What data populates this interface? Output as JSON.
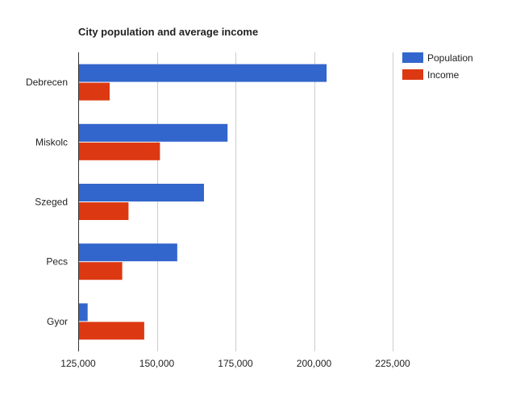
{
  "chart_data": {
    "type": "bar",
    "orientation": "horizontal",
    "title": "City population and average income",
    "xlabel": "",
    "ylabel": "",
    "categories": [
      "Debrecen",
      "Miskolc",
      "Szeged",
      "Pecs",
      "Gyor"
    ],
    "series": [
      {
        "name": "Population",
        "color": "#3366cc",
        "values": [
          204000,
          172500,
          165000,
          156500,
          128000
        ]
      },
      {
        "name": "Income",
        "color": "#dc3912",
        "values": [
          135000,
          151000,
          141000,
          139000,
          146000
        ]
      }
    ],
    "xlim": [
      125000,
      250000
    ],
    "xticks": [
      125000,
      150000,
      175000,
      200000,
      225000
    ],
    "xtick_labels": [
      "125,000",
      "150,000",
      "175,000",
      "200,000",
      "225,000"
    ],
    "grid": true,
    "legend_position": "right"
  }
}
